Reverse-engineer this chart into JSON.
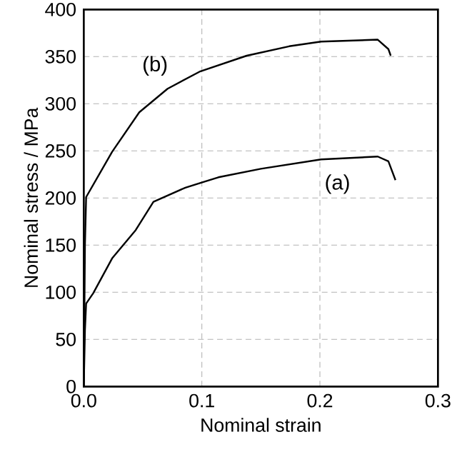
{
  "chart_data": {
    "type": "line",
    "xlabel": "Nominal strain",
    "ylabel": "Nominal stress / MPa",
    "xlim": [
      0,
      0.3
    ],
    "ylim": [
      0,
      400
    ],
    "xticks": [
      {
        "value": 0,
        "label": "0.0"
      },
      {
        "value": 0.1,
        "label": "0.1"
      },
      {
        "value": 0.2,
        "label": "0.2"
      },
      {
        "value": 0.3,
        "label": "0.3"
      }
    ],
    "yticks": [
      0,
      50,
      100,
      150,
      200,
      250,
      300,
      350,
      400
    ],
    "grid": true,
    "marker": "none",
    "line_style": "solid",
    "series": [
      {
        "color": "#000000",
        "x": [
          0,
          0.001,
          0.002,
          0.008,
          0.024,
          0.044,
          0.059,
          0.086,
          0.114,
          0.15,
          0.201,
          0.249,
          0.258,
          0.264
        ],
        "values": [
          0,
          60,
          88,
          99,
          136,
          166,
          196,
          211,
          222,
          231,
          241,
          244,
          239,
          219
        ]
      },
      {
        "color": "#000000",
        "x": [
          0,
          0.001,
          0.002,
          0.024,
          0.047,
          0.071,
          0.098,
          0.138,
          0.174,
          0.201,
          0.249,
          0.258,
          0.26
        ],
        "values": [
          0,
          150,
          201,
          249,
          291,
          316,
          334,
          351,
          361,
          366,
          368,
          358,
          351
        ]
      }
    ],
    "annotations": [
      "(a)",
      "(b)"
    ]
  }
}
